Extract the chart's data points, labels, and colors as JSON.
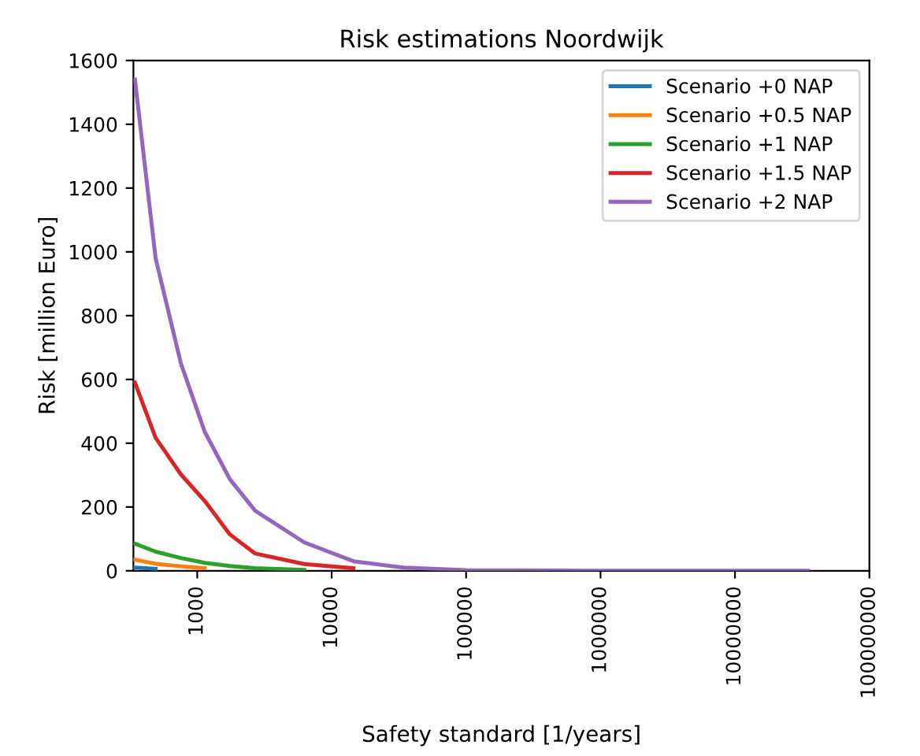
{
  "chart_data": {
    "type": "line",
    "title": "Risk estimations Noordwijk",
    "xlabel": "Safety standard [1/years]",
    "ylabel": "Risk [million Euro]",
    "x": [
      344,
      490,
      756,
      1136,
      1750,
      2700,
      6250,
      14500,
      34400,
      100000,
      1000000,
      10000000,
      35000000
    ],
    "series": [
      {
        "name": "Scenario +0 NAP",
        "color": "#1f77b4",
        "values": [
          10,
          6,
          null,
          null,
          null,
          null,
          null,
          null,
          null,
          null,
          null,
          null,
          null
        ]
      },
      {
        "name": "Scenario +0.5 NAP",
        "color": "#ff7f0e",
        "values": [
          35,
          22,
          14,
          8,
          null,
          null,
          null,
          null,
          null,
          null,
          null,
          null,
          null
        ]
      },
      {
        "name": "Scenario +1 NAP",
        "color": "#2ca02c",
        "values": [
          85,
          60,
          40,
          25,
          15,
          8,
          3,
          null,
          null,
          null,
          null,
          null,
          null
        ]
      },
      {
        "name": "Scenario +1.5 NAP",
        "color": "#d62728",
        "values": [
          590,
          417,
          302,
          219,
          114,
          54,
          21,
          8,
          null,
          null,
          null,
          null,
          null
        ]
      },
      {
        "name": "Scenario +2 NAP",
        "color": "#9467bd",
        "values": [
          1540,
          980,
          650,
          436,
          287,
          188,
          89,
          30,
          10,
          2,
          0,
          0,
          0
        ]
      }
    ],
    "log": "x",
    "xlim": [
      335,
      100000000
    ],
    "xticks": [
      1000,
      10000,
      100000,
      1000000,
      10000000,
      100000000
    ],
    "ylim": [
      0,
      1600
    ],
    "yticks": [
      0,
      200,
      400,
      600,
      800,
      1000,
      1200,
      1400,
      1600
    ],
    "grid": false,
    "legend": "top right"
  }
}
